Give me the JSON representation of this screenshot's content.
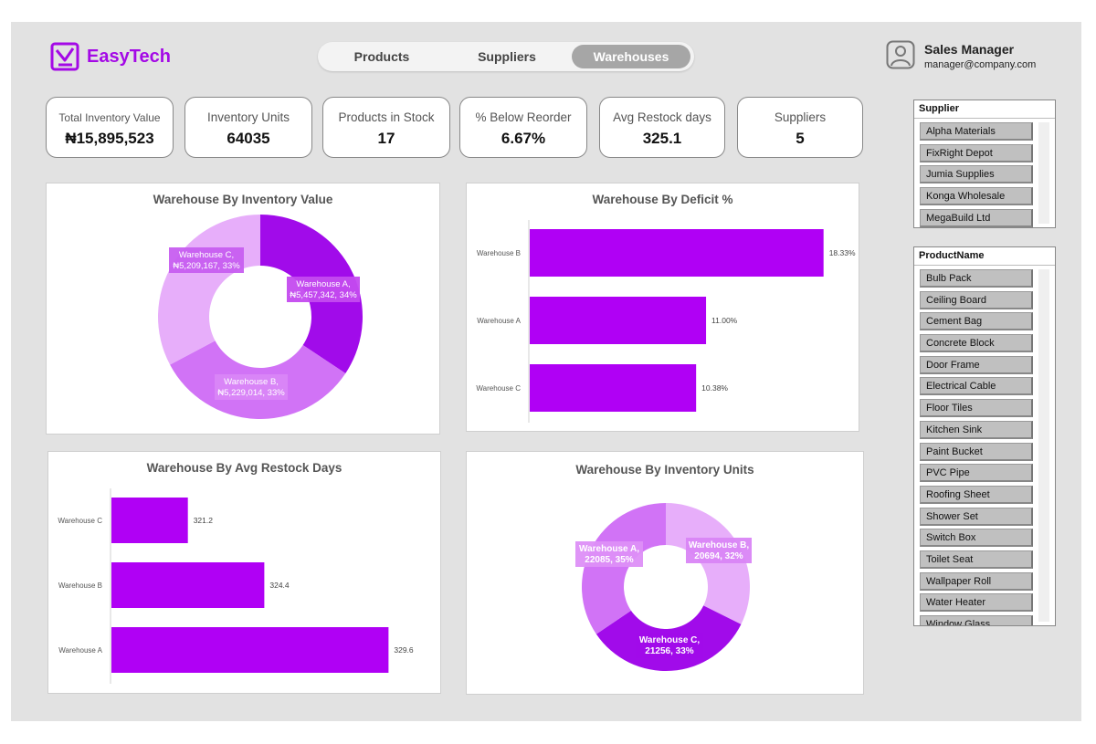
{
  "app": {
    "name": "EasyTech",
    "brand_color": "#a409e6"
  },
  "nav": {
    "tabs": [
      {
        "label": "Products"
      },
      {
        "label": "Suppliers"
      },
      {
        "label": "Warehouses"
      }
    ],
    "active": "Warehouses"
  },
  "user": {
    "role": "Sales Manager",
    "email": "manager@company.com"
  },
  "kpis": [
    {
      "label": "Total Inventory Value",
      "value": "₦15,895,523"
    },
    {
      "label": "Inventory Units",
      "value": "64035"
    },
    {
      "label": "Products in Stock",
      "value": "17"
    },
    {
      "label": "% Below Reorder",
      "value": "6.67%"
    },
    {
      "label": "Avg Restock days",
      "value": "325.1"
    },
    {
      "label": "Suppliers",
      "value": "5"
    }
  ],
  "slicers": {
    "supplier": {
      "header": "Supplier",
      "items": [
        "Alpha Materials",
        "FixRight Depot",
        "Jumia Supplies",
        "Konga Wholesale",
        "MegaBuild Ltd"
      ]
    },
    "product": {
      "header": "ProductName",
      "items": [
        "Bulb Pack",
        "Ceiling Board",
        "Cement Bag",
        "Concrete Block",
        "Door Frame",
        "Electrical Cable",
        "Floor Tiles",
        "Kitchen Sink",
        "Paint Bucket",
        "PVC Pipe",
        "Roofing Sheet",
        "Shower Set",
        "Switch Box",
        "Toilet Seat",
        "Wallpaper Roll",
        "Water Heater",
        "Window Glass"
      ]
    }
  },
  "chart_data": [
    {
      "id": "inv_value",
      "type": "pie",
      "title": "Warehouse By Inventory Value",
      "slices": [
        {
          "name": "Warehouse A",
          "value": 5457342,
          "pct": 34,
          "label_lines": [
            "Warehouse A,",
            "₦5,457,342, 34%"
          ],
          "color": "#a10bea"
        },
        {
          "name": "Warehouse B",
          "value": 5229014,
          "pct": 33,
          "label_lines": [
            "Warehouse B,",
            "₦5,229,014, 33%"
          ],
          "color": "#d173f6"
        },
        {
          "name": "Warehouse C",
          "value": 5209167,
          "pct": 33,
          "label_lines": [
            "Warehouse C,",
            "₦5,209,167, 33%"
          ],
          "color": "#e7aefa"
        }
      ]
    },
    {
      "id": "deficit",
      "type": "bar",
      "title": "Warehouse By Deficit %",
      "categories": [
        "Warehouse B",
        "Warehouse A",
        "Warehouse C"
      ],
      "values": [
        18.33,
        11.0,
        10.38
      ],
      "value_labels": [
        "18.33%",
        "11.00%",
        "10.38%"
      ],
      "xlim": [
        0,
        20
      ],
      "color": "#b000f5"
    },
    {
      "id": "restock",
      "type": "bar",
      "title": "Warehouse By Avg Restock Days",
      "categories": [
        "Warehouse C",
        "Warehouse B",
        "Warehouse A"
      ],
      "values": [
        321.2,
        324.4,
        329.6
      ],
      "value_labels": [
        "321.2",
        "324.4",
        "329.6"
      ],
      "xlim": [
        318,
        331
      ],
      "color": "#b000f5"
    },
    {
      "id": "inv_units",
      "type": "pie",
      "title": "Warehouse By Inventory Units",
      "slices": [
        {
          "name": "Warehouse B",
          "value": 20694,
          "pct": 32,
          "label_lines": [
            "Warehouse B,",
            "20694, 32%"
          ],
          "color": "#e7aefa"
        },
        {
          "name": "Warehouse C",
          "value": 21256,
          "pct": 33,
          "label_lines": [
            "Warehouse C,",
            "21256, 33%"
          ],
          "color": "#a10bea"
        },
        {
          "name": "Warehouse A",
          "value": 22085,
          "pct": 35,
          "label_lines": [
            "Warehouse A,",
            "22085, 35%"
          ],
          "color": "#d173f6"
        }
      ]
    }
  ]
}
